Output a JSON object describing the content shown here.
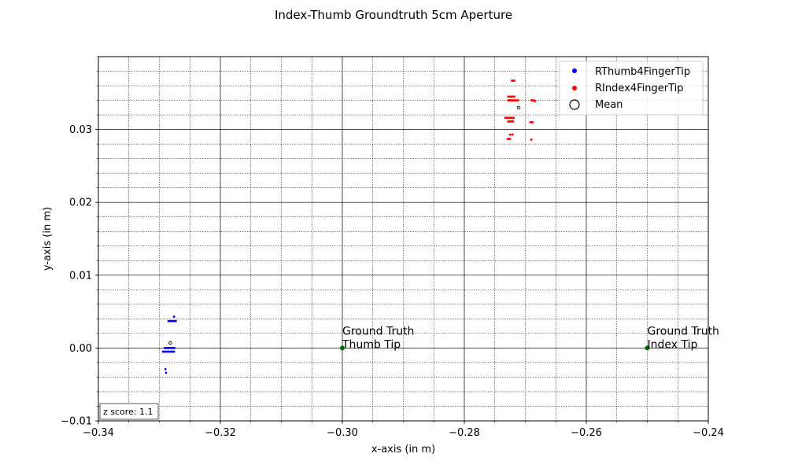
{
  "chart_data": {
    "type": "scatter",
    "title": "Index-Thumb Groundtruth 5cm Aperture",
    "xlabel": "x-axis (in m)",
    "ylabel": "y-axis (in m)",
    "xlim": [
      -0.34,
      -0.24
    ],
    "ylim": [
      -0.01,
      0.04
    ],
    "x_ticks": [
      -0.34,
      -0.32,
      -0.3,
      -0.28,
      -0.26,
      -0.24
    ],
    "x_tick_labels": [
      "−0.34",
      "−0.32",
      "−0.30",
      "−0.28",
      "−0.26",
      "−0.24"
    ],
    "y_ticks": [
      -0.01,
      0.0,
      0.01,
      0.02,
      0.03
    ],
    "y_tick_labels": [
      "−0.01",
      "0.00",
      "0.01",
      "0.02",
      "0.03"
    ],
    "grid": "major and minor",
    "legend_position": "top-right",
    "series": [
      {
        "name": "RThumb4FingerTip",
        "color": "#0000ff",
        "points": [
          [
            -0.3276,
            0.0043
          ],
          [
            -0.3285,
            0.0037
          ],
          [
            -0.3283,
            0.0037
          ],
          [
            -0.3281,
            0.0037
          ],
          [
            -0.3279,
            0.0037
          ],
          [
            -0.3277,
            0.0037
          ],
          [
            -0.3275,
            0.0037
          ],
          [
            -0.3273,
            0.0037
          ],
          [
            -0.3291,
            0.0
          ],
          [
            -0.3289,
            0.0
          ],
          [
            -0.3287,
            0.0
          ],
          [
            -0.3285,
            0.0
          ],
          [
            -0.3283,
            0.0
          ],
          [
            -0.3281,
            0.0
          ],
          [
            -0.3279,
            0.0
          ],
          [
            -0.3277,
            0.0
          ],
          [
            -0.3275,
            0.0
          ],
          [
            -0.3294,
            -0.0005
          ],
          [
            -0.3292,
            -0.0005
          ],
          [
            -0.329,
            -0.0005
          ],
          [
            -0.3288,
            -0.0005
          ],
          [
            -0.3286,
            -0.0005
          ],
          [
            -0.3284,
            -0.0005
          ],
          [
            -0.3282,
            -0.0005
          ],
          [
            -0.328,
            -0.0005
          ],
          [
            -0.3278,
            -0.0005
          ],
          [
            -0.3276,
            -0.0005
          ],
          [
            -0.329,
            -0.0029
          ],
          [
            -0.3289,
            -0.0034
          ]
        ]
      },
      {
        "name": "RIndex4FingerTip",
        "color": "#ff0000",
        "points": [
          [
            -0.2722,
            0.0367
          ],
          [
            -0.272,
            0.0367
          ],
          [
            -0.2718,
            0.0367
          ],
          [
            -0.2728,
            0.0345
          ],
          [
            -0.2726,
            0.0345
          ],
          [
            -0.2724,
            0.0345
          ],
          [
            -0.2722,
            0.0345
          ],
          [
            -0.272,
            0.0345
          ],
          [
            -0.2718,
            0.0345
          ],
          [
            -0.2728,
            0.034
          ],
          [
            -0.2726,
            0.034
          ],
          [
            -0.2724,
            0.034
          ],
          [
            -0.2722,
            0.034
          ],
          [
            -0.272,
            0.034
          ],
          [
            -0.2718,
            0.034
          ],
          [
            -0.2716,
            0.034
          ],
          [
            -0.2714,
            0.034
          ],
          [
            -0.2712,
            0.034
          ],
          [
            -0.269,
            0.034
          ],
          [
            -0.2688,
            0.034
          ],
          [
            -0.2686,
            0.034
          ],
          [
            -0.2684,
            0.0339
          ],
          [
            -0.2733,
            0.0316
          ],
          [
            -0.2731,
            0.0316
          ],
          [
            -0.2729,
            0.0316
          ],
          [
            -0.2727,
            0.0316
          ],
          [
            -0.2725,
            0.0316
          ],
          [
            -0.2723,
            0.0316
          ],
          [
            -0.2721,
            0.0316
          ],
          [
            -0.2719,
            0.0316
          ],
          [
            -0.2728,
            0.0311
          ],
          [
            -0.2726,
            0.0311
          ],
          [
            -0.2724,
            0.0311
          ],
          [
            -0.2722,
            0.0311
          ],
          [
            -0.272,
            0.0311
          ],
          [
            -0.2692,
            0.031
          ],
          [
            -0.269,
            0.031
          ],
          [
            -0.2688,
            0.031
          ],
          [
            -0.2725,
            0.0293
          ],
          [
            -0.2721,
            0.0293
          ],
          [
            -0.2729,
            0.0287
          ],
          [
            -0.2727,
            0.0287
          ],
          [
            -0.2725,
            0.0287
          ],
          [
            -0.269,
            0.0286
          ]
        ]
      }
    ],
    "mean": {
      "name": "Mean",
      "points": [
        [
          -0.3282,
          0.0007
        ],
        [
          -0.2711,
          0.033
        ]
      ]
    },
    "annotations": [
      {
        "x": -0.3,
        "y": 0.0,
        "color": "#006400",
        "lines": [
          "Ground Truth",
          "Thumb Tip"
        ]
      },
      {
        "x": -0.25,
        "y": 0.0,
        "color": "#006400",
        "lines": [
          "Ground Truth",
          "Index Tip"
        ]
      }
    ],
    "z_score_label": "z score: 1.1"
  }
}
